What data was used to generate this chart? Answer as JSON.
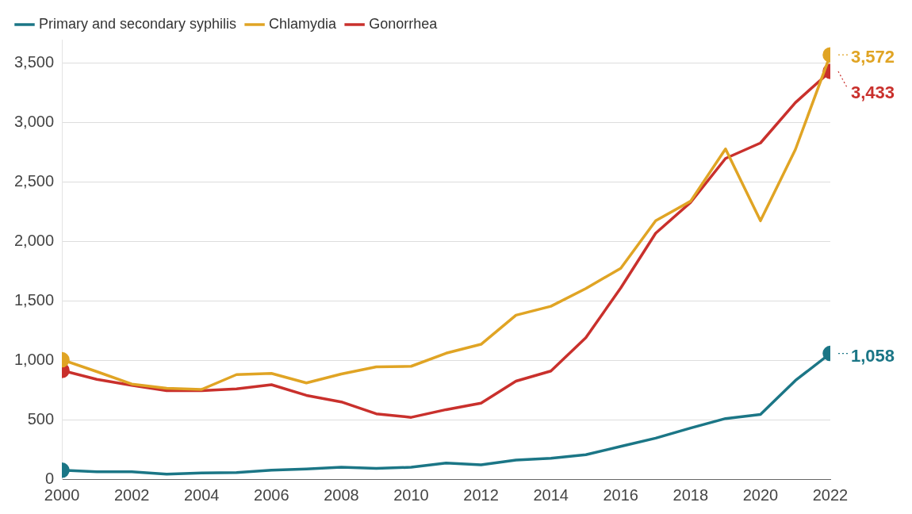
{
  "chart_data": {
    "type": "line",
    "x": [
      2000,
      2001,
      2002,
      2003,
      2004,
      2005,
      2006,
      2007,
      2008,
      2009,
      2010,
      2011,
      2012,
      2013,
      2014,
      2015,
      2016,
      2017,
      2018,
      2019,
      2020,
      2021,
      2022
    ],
    "xlim": [
      2000,
      2022
    ],
    "xticks": [
      2000,
      2002,
      2004,
      2006,
      2008,
      2010,
      2012,
      2014,
      2016,
      2018,
      2020,
      2022
    ],
    "ylim": [
      0,
      3700
    ],
    "yticks": [
      0,
      500,
      {
        "value": 1000,
        "label": "1,000"
      },
      {
        "value": 1500,
        "label": "1,500"
      },
      {
        "value": 2000,
        "label": "2,000"
      },
      {
        "value": 2500,
        "label": "2,500"
      },
      {
        "value": 3000,
        "label": "3,000"
      },
      {
        "value": 3500,
        "label": "3,500"
      }
    ],
    "grid": "y",
    "legend": "top left",
    "series": [
      {
        "name": "Primary and secondary syphilis",
        "color": "#1b7686",
        "values": [
          75,
          62,
          62,
          42,
          52,
          55,
          75,
          85,
          100,
          90,
          100,
          135,
          120,
          160,
          175,
          205,
          275,
          345,
          430,
          510,
          545,
          830,
          1058
        ],
        "value_labels": [
          null,
          null,
          null,
          null,
          null,
          null,
          null,
          null,
          null,
          null,
          null,
          null,
          null,
          null,
          null,
          null,
          null,
          null,
          null,
          null,
          null,
          null,
          "1,058"
        ]
      },
      {
        "name": "Chlamydia",
        "color": "#e0a424",
        "values": [
          1005,
          905,
          800,
          765,
          755,
          880,
          890,
          810,
          885,
          945,
          950,
          1060,
          1135,
          1380,
          1455,
          1605,
          1775,
          2175,
          2340,
          2780,
          2175,
          2775,
          3572
        ],
        "value_labels": [
          null,
          null,
          null,
          null,
          null,
          null,
          null,
          null,
          null,
          null,
          null,
          null,
          null,
          null,
          null,
          null,
          null,
          null,
          null,
          null,
          null,
          null,
          "3,572"
        ]
      },
      {
        "name": "Gonorrhea",
        "color": "#c9302c",
        "values": [
          915,
          840,
          790,
          745,
          745,
          760,
          795,
          705,
          650,
          550,
          520,
          585,
          640,
          825,
          910,
          1190,
          1610,
          2070,
          2330,
          2700,
          2830,
          3170,
          3433
        ],
        "value_labels": [
          null,
          null,
          null,
          null,
          null,
          null,
          null,
          null,
          null,
          null,
          null,
          null,
          null,
          null,
          null,
          null,
          null,
          null,
          null,
          null,
          null,
          null,
          "3,433"
        ]
      }
    ]
  }
}
